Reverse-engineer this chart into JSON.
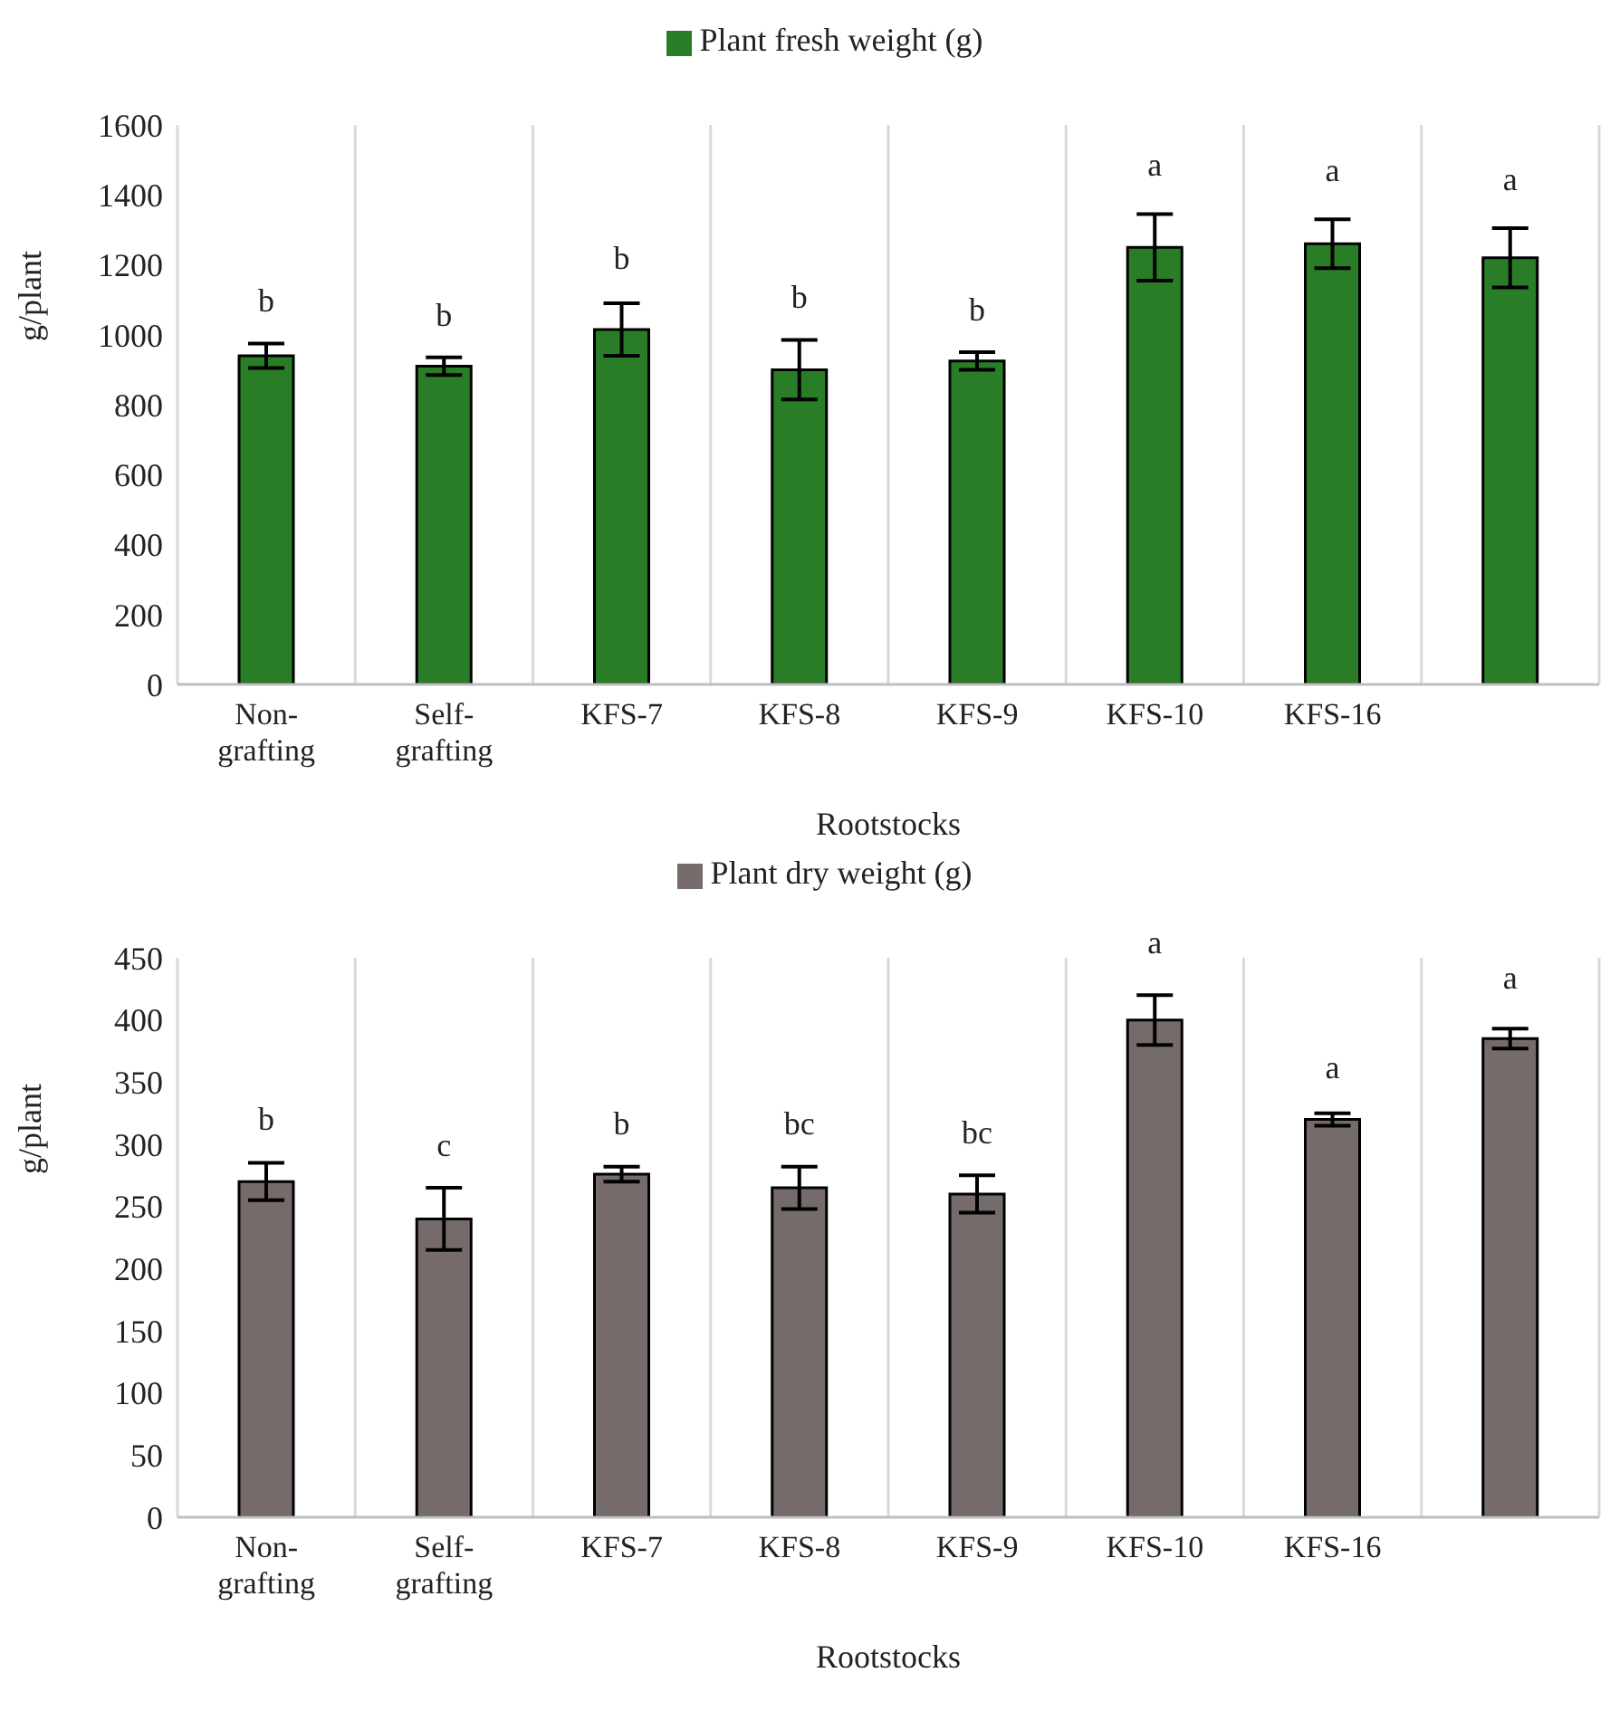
{
  "chart_data": [
    {
      "type": "bar",
      "categories": [
        "Non-grafting",
        "Self-grafting",
        "KFS-7",
        "KFS-8",
        "KFS-9",
        "KFS-10",
        "KFS-16",
        null
      ],
      "series": [
        {
          "name": "Plant fresh weight (g)",
          "color": "#2a7d27",
          "values": [
            940,
            910,
            1015,
            900,
            925,
            1250,
            1260,
            1220
          ],
          "errors": [
            35,
            25,
            75,
            85,
            25,
            95,
            70,
            85
          ],
          "value_labels": [
            "b",
            "b",
            "b",
            "b",
            "b",
            "a",
            "a",
            "a"
          ]
        }
      ],
      "xlabel": "Rootstocks",
      "ylabel": "g/plant",
      "ylim": [
        0,
        1600
      ],
      "yticks": [
        0,
        200,
        400,
        600,
        800,
        1000,
        1200,
        1400,
        1600
      ],
      "grid": "x",
      "legend": "top"
    },
    {
      "type": "bar",
      "categories": [
        "Non-grafting",
        "Self-grafting",
        "KFS-7",
        "KFS-8",
        "KFS-9",
        "KFS-10",
        "KFS-16",
        null
      ],
      "series": [
        {
          "name": "Plant dry weight (g)",
          "color": "#756b6b",
          "values": [
            270,
            240,
            276,
            265,
            260,
            400,
            320,
            385
          ],
          "errors": [
            15,
            25,
            6,
            17,
            15,
            20,
            5,
            8
          ],
          "value_labels": [
            "b",
            "c",
            "b",
            "bc",
            "bc",
            "a",
            "a",
            "a"
          ]
        }
      ],
      "xlabel": "Rootstocks",
      "ylabel": "g/plant",
      "ylim": [
        0,
        450
      ],
      "yticks": [
        0,
        50,
        100,
        150,
        200,
        250,
        300,
        350,
        400,
        450
      ],
      "grid": "x",
      "legend": "top"
    }
  ]
}
